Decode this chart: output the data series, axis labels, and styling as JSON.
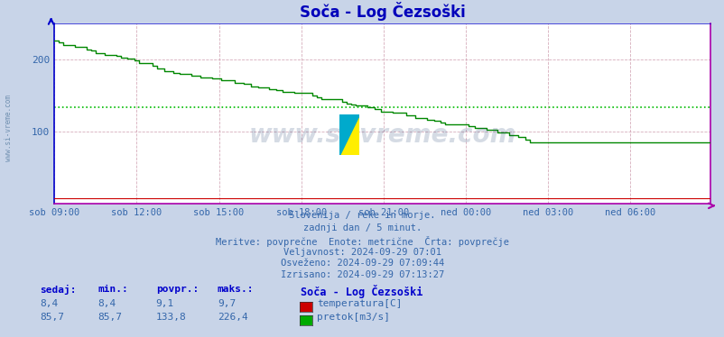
{
  "title": "Soča - Log Čezsoški",
  "title_color": "#0000bb",
  "bg_color": "#c8d4e8",
  "plot_bg_color": "#ffffff",
  "grid_color": "#cc99aa",
  "avg_line_color": "#00bb00",
  "avg_line_value": 133.8,
  "x_tick_labels": [
    "sob 09:00",
    "sob 12:00",
    "sob 15:00",
    "sob 18:00",
    "sob 21:00",
    "ned 00:00",
    "ned 03:00",
    "ned 06:00"
  ],
  "x_tick_positions": [
    0,
    36,
    72,
    108,
    144,
    180,
    216,
    252
  ],
  "ylim": [
    0,
    250
  ],
  "yticks": [
    100,
    200
  ],
  "xlim": [
    0,
    287
  ],
  "watermark_text": "www.si-vreme.com",
  "watermark_color": "#1a3a6e",
  "watermark_alpha": 0.18,
  "info_lines": [
    "Slovenija / reke in morje.",
    "zadnji dan / 5 minut.",
    "Meritve: povprečne  Enote: metrične  Črta: povprečje",
    "Veljavnost: 2024-09-29 07:01",
    "Osveženo: 2024-09-29 07:09:44",
    "Izrisano: 2024-09-29 07:13:27"
  ],
  "info_color": "#3366aa",
  "table_headers": [
    "sedaj:",
    "min.:",
    "povpr.:",
    "maks.:"
  ],
  "table_header_color": "#0000cc",
  "table_row1": [
    "8,4",
    "8,4",
    "9,1",
    "9,7"
  ],
  "table_row2": [
    "85,7",
    "85,7",
    "133,8",
    "226,4"
  ],
  "legend_title": "Soča - Log Čezsoški",
  "legend_items": [
    {
      "label": "temperatura[C]",
      "color": "#cc0000"
    },
    {
      "label": "pretok[m3/s]",
      "color": "#00aa00"
    }
  ],
  "temp_line_color": "#cc0000",
  "flow_color": "#008800",
  "x_axis_color": "#aa00aa",
  "y_axis_color": "#0000cc",
  "sidebar_text": "www.si-vreme.com",
  "sidebar_color": "#6688aa",
  "logo_yellow": "#ffee00",
  "logo_blue": "#0055cc",
  "logo_teal": "#00aacc"
}
